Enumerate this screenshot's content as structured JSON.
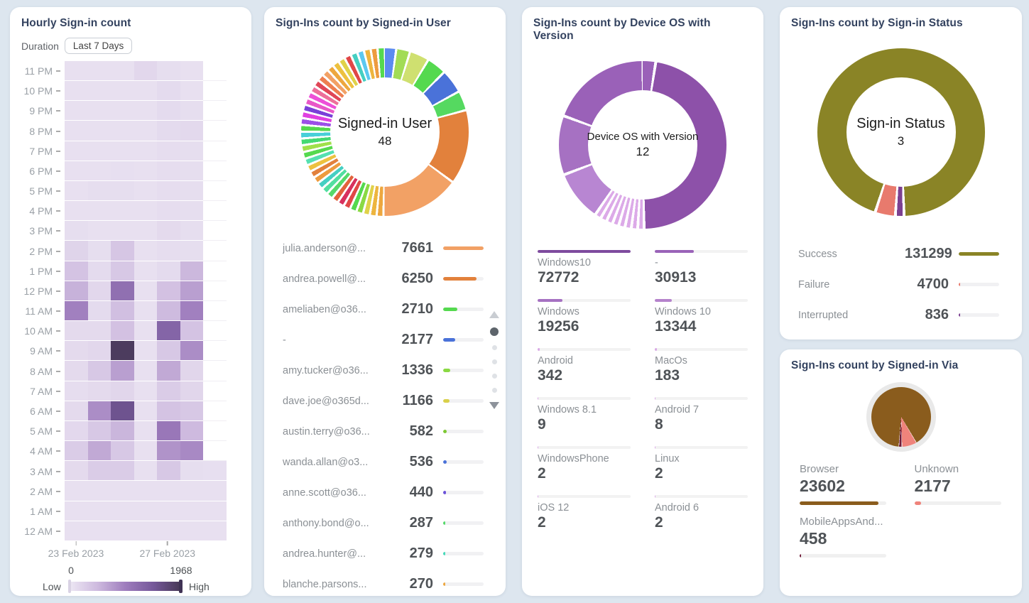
{
  "ui": {
    "background": "#dde6ef",
    "card_background": "#ffffff",
    "title_color": "#33425f"
  },
  "chart_data": [
    {
      "id": "hourly_signin",
      "type": "heatmap",
      "title": "Hourly Sign-in count",
      "duration_label": "Duration",
      "duration_value": "Last 7 Days",
      "rows": [
        "11 PM",
        "10 PM",
        "9 PM",
        "8 PM",
        "7 PM",
        "6 PM",
        "5 PM",
        "4 PM",
        "3 PM",
        "2 PM",
        "1 PM",
        "12 PM",
        "11 AM",
        "10 AM",
        "9 AM",
        "8 AM",
        "7 AM",
        "6 AM",
        "5 AM",
        "4 AM",
        "3 AM",
        "2 AM",
        "1 AM",
        "12 AM"
      ],
      "x_ticks": [
        {
          "label": "23 Feb 2023",
          "pos_pct": 7
        },
        {
          "label": "27 Feb 2023",
          "pos_pct": 63.5
        }
      ],
      "scale": {
        "min": 0,
        "max": 1968,
        "low_label": "Low",
        "high_label": "High"
      },
      "colors": {
        "ramp": [
          "#ece6f3",
          "#cdb9de",
          "#9e7cbd",
          "#75589a",
          "#463754"
        ]
      },
      "values": [
        [
          70,
          70,
          70,
          160,
          90,
          70,
          null
        ],
        [
          70,
          70,
          70,
          70,
          120,
          70,
          null
        ],
        [
          70,
          70,
          70,
          70,
          120,
          90,
          null
        ],
        [
          70,
          70,
          70,
          70,
          120,
          140,
          null
        ],
        [
          70,
          70,
          70,
          70,
          100,
          90,
          null
        ],
        [
          70,
          70,
          80,
          70,
          100,
          90,
          null
        ],
        [
          70,
          90,
          90,
          70,
          100,
          90,
          null
        ],
        [
          70,
          70,
          70,
          70,
          100,
          90,
          null
        ],
        [
          90,
          70,
          70,
          70,
          130,
          90,
          null
        ],
        [
          200,
          90,
          350,
          70,
          100,
          90,
          null
        ],
        [
          380,
          120,
          330,
          70,
          120,
          500,
          null
        ],
        [
          550,
          160,
          1150,
          70,
          400,
          700,
          null
        ],
        [
          950,
          120,
          430,
          70,
          470,
          950,
          null
        ],
        [
          130,
          130,
          400,
          70,
          1300,
          380,
          null
        ],
        [
          130,
          160,
          1900,
          70,
          330,
          850,
          null
        ],
        [
          130,
          330,
          700,
          70,
          620,
          180,
          null
        ],
        [
          100,
          130,
          180,
          70,
          280,
          180,
          null
        ],
        [
          130,
          850,
          1550,
          70,
          380,
          330,
          null
        ],
        [
          150,
          330,
          520,
          70,
          1050,
          480,
          null
        ],
        [
          280,
          620,
          330,
          70,
          800,
          880,
          null
        ],
        [
          130,
          280,
          280,
          70,
          330,
          90,
          80
        ],
        [
          70,
          70,
          70,
          70,
          70,
          70,
          70
        ],
        [
          70,
          70,
          70,
          70,
          70,
          70,
          70
        ],
        [
          70,
          70,
          70,
          70,
          70,
          70,
          70
        ]
      ]
    },
    {
      "id": "signed_in_user",
      "type": "donut",
      "title": "Sign-Ins count by Signed-in User",
      "center_label": "Signed-in User",
      "center_value": "48",
      "items": [
        {
          "label": "julia.anderson@...",
          "value": 7661,
          "color": "#f2a165",
          "bar_pct": 100
        },
        {
          "label": "andrea.powell@...",
          "value": 6250,
          "color": "#e2813c",
          "bar_pct": 82
        },
        {
          "label": "ameliaben@o36...",
          "value": 2710,
          "color": "#55d94f",
          "bar_pct": 35
        },
        {
          "label": "-",
          "value": 2177,
          "color": "#4a72d9",
          "bar_pct": 29
        },
        {
          "label": "amy.tucker@o36...",
          "value": 1336,
          "color": "#8ad943",
          "bar_pct": 18
        },
        {
          "label": "dave.joe@o365d...",
          "value": 1166,
          "color": "#d9d04a",
          "bar_pct": 15
        },
        {
          "label": "austin.terry@o36...",
          "value": 582,
          "color": "#7cc832",
          "bar_pct": 9
        },
        {
          "label": "wanda.allan@o3...",
          "value": 536,
          "color": "#4a72d9",
          "bar_pct": 8
        },
        {
          "label": "anne.scott@o36...",
          "value": 440,
          "color": "#6a52d9",
          "bar_pct": 7
        },
        {
          "label": "anthony.bond@o...",
          "value": 287,
          "color": "#55d96a",
          "bar_pct": 5
        },
        {
          "label": "andrea.hunter@...",
          "value": 279,
          "color": "#45d9b8",
          "bar_pct": 5
        },
        {
          "label": "blanche.parsons...",
          "value": 270,
          "color": "#eda73f",
          "bar_pct": 5
        }
      ],
      "pager": {
        "dots": 5,
        "active_dot": 0
      },
      "donut": {
        "gap_deg": 1.6,
        "segments": [
          {
            "c": "#5b8bf0",
            "a": 7
          },
          {
            "c": "#a2dc55",
            "a": 8
          },
          {
            "c": "#cfe070",
            "a": 12
          },
          {
            "c": "#55d94f",
            "a": 12
          },
          {
            "c": "#4a72d9",
            "a": 15
          },
          {
            "c": "#55d960",
            "a": 12
          },
          {
            "c": "#e2813c",
            "a": 50
          },
          {
            "c": "#f2a165",
            "a": 53
          },
          {
            "c": "#eda73f",
            "a": 3.1
          },
          {
            "c": "#edb53f",
            "a": 3.1
          },
          {
            "c": "#e0d24a",
            "a": 3.1
          },
          {
            "c": "#8ad943",
            "a": 3.1
          },
          {
            "c": "#55d94f",
            "a": 3.1
          },
          {
            "c": "#e04747",
            "a": 3.1
          },
          {
            "c": "#d8315e",
            "a": 3.1
          },
          {
            "c": "#e2633c",
            "a": 3.1
          },
          {
            "c": "#55d96a",
            "a": 3.1
          },
          {
            "c": "#52dfa0",
            "a": 3.1
          },
          {
            "c": "#45cfc2",
            "a": 3.1
          },
          {
            "c": "#ed9b3f",
            "a": 3.1
          },
          {
            "c": "#e2813c",
            "a": 3.1
          },
          {
            "c": "#edc13f",
            "a": 3.1
          },
          {
            "c": "#55e0b0",
            "a": 3.1
          },
          {
            "c": "#55d94f",
            "a": 3.1
          },
          {
            "c": "#a0e04a",
            "a": 3.1
          },
          {
            "c": "#45d973",
            "a": 3.1
          },
          {
            "c": "#48cfd9",
            "a": 3.1
          },
          {
            "c": "#55d94f",
            "a": 3.1
          },
          {
            "c": "#9b50e8",
            "a": 3.1
          },
          {
            "c": "#e040e0",
            "a": 3.1
          },
          {
            "c": "#7a40d8",
            "a": 3.1
          },
          {
            "c": "#e858c8",
            "a": 3.1
          },
          {
            "c": "#ed4fd8",
            "a": 3.1
          },
          {
            "c": "#ed6f9b",
            "a": 3.1
          },
          {
            "c": "#e04758",
            "a": 3.1
          },
          {
            "c": "#ed7f50",
            "a": 3.1
          },
          {
            "c": "#f2a165",
            "a": 3.1
          },
          {
            "c": "#eda73f",
            "a": 3.1
          },
          {
            "c": "#edc13f",
            "a": 3.1
          },
          {
            "c": "#e0d24a",
            "a": 3.1
          },
          {
            "c": "#e04747",
            "a": 3.1
          },
          {
            "c": "#45cfc2",
            "a": 3.1
          },
          {
            "c": "#5bc8f0",
            "a": 3.1
          },
          {
            "c": "#edb53f",
            "a": 3.1
          },
          {
            "c": "#ed9b3f",
            "a": 3.1
          },
          {
            "c": "#55d94f",
            "a": 3.6
          }
        ]
      }
    },
    {
      "id": "device_os",
      "type": "donut",
      "title": "Sign-Ins count by Device OS with Version",
      "center_label": "Device OS with Version",
      "center_value": "12",
      "items": [
        {
          "label": "Windows10",
          "value": 72772,
          "color": "#7e4b9e",
          "bar_pct": 100
        },
        {
          "label": "-",
          "value": 30913,
          "color": "#9a63b8",
          "bar_pct": 42
        },
        {
          "label": "Windows",
          "value": 19256,
          "color": "#a671c2",
          "bar_pct": 27
        },
        {
          "label": "Windows 10",
          "value": 13344,
          "color": "#b583cc",
          "bar_pct": 18
        },
        {
          "label": "Android",
          "value": 342,
          "color": "#d9a8e6",
          "bar_pct": 2
        },
        {
          "label": "MacOs",
          "value": 183,
          "color": "#d9a8e6",
          "bar_pct": 2
        },
        {
          "label": "Windows 8.1",
          "value": 9,
          "color": "#d9a8e6",
          "bar_pct": 1
        },
        {
          "label": "Android 7",
          "value": 8,
          "color": "#d9a8e6",
          "bar_pct": 1
        },
        {
          "label": "WindowsPhone",
          "value": 2,
          "color": "#d9a8e6",
          "bar_pct": 1
        },
        {
          "label": "Linux",
          "value": 2,
          "color": "#d9a8e6",
          "bar_pct": 1
        },
        {
          "label": "iOS 12",
          "value": 2,
          "color": "#d9a8e6",
          "bar_pct": 1
        },
        {
          "label": "Android 6",
          "value": 2,
          "color": "#d9a8e6",
          "bar_pct": 1
        }
      ],
      "donut": {
        "gap_deg": 2,
        "segments": [
          {
            "c": "#9a61b8",
            "a": 8
          },
          {
            "c": "#8d51a9",
            "a": 168
          },
          {
            "c": "#dcaae8",
            "a": 2.4
          },
          {
            "c": "#dcaae8",
            "a": 2.4
          },
          {
            "c": "#dcaae8",
            "a": 2.4
          },
          {
            "c": "#dcaae8",
            "a": 2.4
          },
          {
            "c": "#dcaae8",
            "a": 2.4
          },
          {
            "c": "#dcaae8",
            "a": 2.4
          },
          {
            "c": "#dcaae8",
            "a": 2.4
          },
          {
            "c": "#dcaae8",
            "a": 2.4
          },
          {
            "c": "#b886d2",
            "a": 33
          },
          {
            "c": "#a671c2",
            "a": 39
          },
          {
            "c": "#9a61b8",
            "a": 68
          }
        ]
      }
    },
    {
      "id": "signin_status",
      "type": "donut",
      "title": "Sign-Ins count by Sign-in Status",
      "center_label": "Sign-in Status",
      "center_value": "3",
      "items": [
        {
          "label": "Success",
          "value": 131299,
          "color": "#8a8426",
          "bar_pct": 100
        },
        {
          "label": "Failure",
          "value": 4700,
          "color": "#e87a6d",
          "bar_pct": 4
        },
        {
          "label": "Interrupted",
          "value": 836,
          "color": "#7c4091",
          "bar_pct": 3
        }
      ],
      "donut": {
        "gap_deg": 2,
        "segments": [
          {
            "c": "#8a8426",
            "a": 177
          },
          {
            "c": "#7c4091",
            "a": 4
          },
          {
            "c": "#e87a6d",
            "a": 12
          },
          {
            "c": "#8a8426",
            "a": 161
          }
        ]
      }
    },
    {
      "id": "signed_in_via",
      "type": "pie",
      "title": "Sign-Ins count by Signed-in Via",
      "items": [
        {
          "label": "Browser",
          "value": 23602,
          "color": "#8a5c1d",
          "bar_pct": 91
        },
        {
          "label": "Unknown",
          "value": 2177,
          "color": "#ef837b",
          "bar_pct": 8
        },
        {
          "label": "MobileAppsAnd...",
          "value": 458,
          "color": "#701b38",
          "bar_pct": 2
        }
      ],
      "donut": {
        "gap_deg": 1,
        "segments": [
          {
            "c": "#8a5c1d",
            "a": 149
          },
          {
            "c": "#ef837b",
            "a": 28
          },
          {
            "c": "#701b38",
            "a": 5
          },
          {
            "c": "#8a5c1d",
            "a": 176
          }
        ]
      }
    }
  ]
}
